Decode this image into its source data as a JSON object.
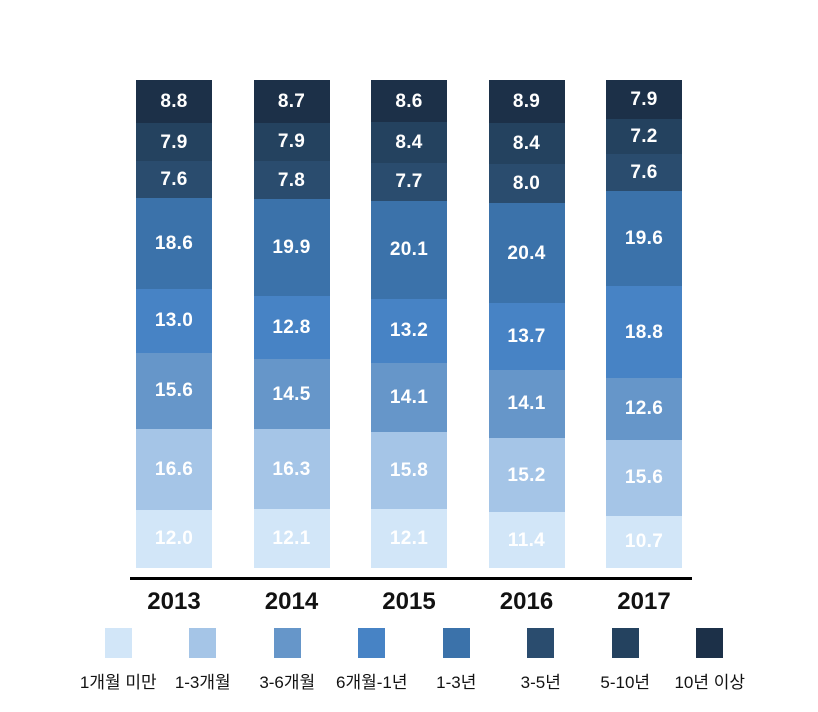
{
  "chart_data": {
    "type": "bar",
    "variant": "stacked-100-percent-column",
    "title": "",
    "xlabel": "",
    "ylabel": "",
    "grid": false,
    "legend_position": "bottom",
    "value_label_color": "#ffffff",
    "axis_line_color": "#000000",
    "categories": [
      "2013",
      "2014",
      "2015",
      "2016",
      "2017"
    ],
    "series": [
      {
        "name": "1개월 미만",
        "color": "#d2e6f8",
        "values": [
          12.0,
          12.1,
          12.1,
          11.4,
          10.7
        ]
      },
      {
        "name": "1-3개월",
        "color": "#a5c5e7",
        "values": [
          16.6,
          16.3,
          15.8,
          15.2,
          15.6
        ]
      },
      {
        "name": "3-6개월",
        "color": "#6696c9",
        "values": [
          15.6,
          14.5,
          14.1,
          14.1,
          12.6
        ]
      },
      {
        "name": "6개월-1년",
        "color": "#4783c5",
        "values": [
          13.0,
          12.8,
          13.2,
          13.7,
          18.8
        ]
      },
      {
        "name": "1-3년",
        "color": "#3b72aa",
        "values": [
          18.6,
          19.9,
          20.1,
          20.4,
          19.6
        ]
      },
      {
        "name": "3-5년",
        "color": "#2a4c6e",
        "values": [
          7.6,
          7.8,
          7.7,
          8.0,
          7.6
        ]
      },
      {
        "name": "5-10년",
        "color": "#24425f",
        "values": [
          7.9,
          7.9,
          8.4,
          8.4,
          7.2
        ]
      },
      {
        "name": "10년 이상",
        "color": "#1c3048",
        "values": [
          8.8,
          8.7,
          8.6,
          8.9,
          7.9
        ]
      }
    ],
    "stack_order_bottom_to_top": [
      "1개월 미만",
      "1-3개월",
      "3-6개월",
      "6개월-1년",
      "1-3년",
      "3-5년",
      "5-10년",
      "10년 이상"
    ]
  }
}
